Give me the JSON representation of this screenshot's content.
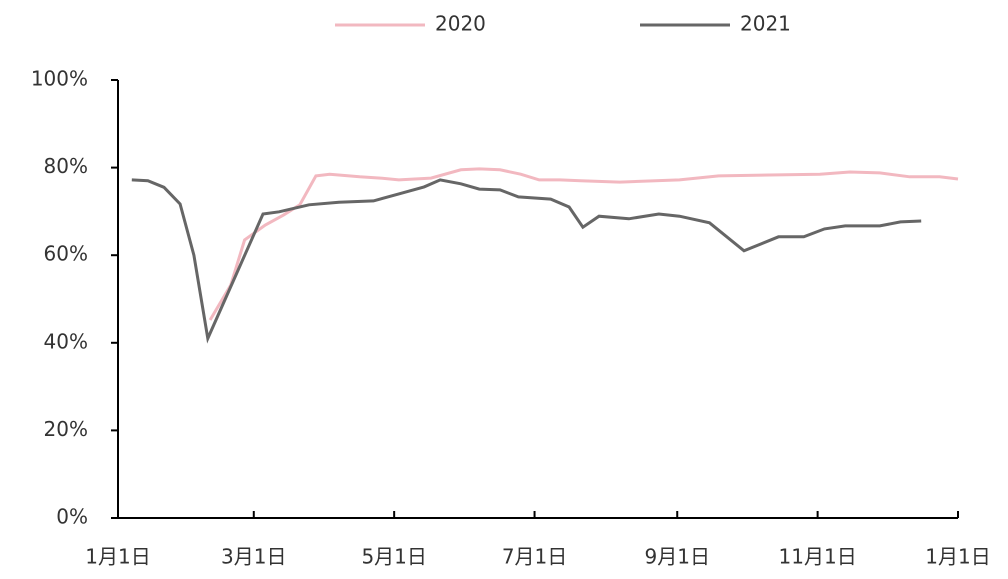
{
  "chart_data": {
    "type": "line",
    "xlim": [
      0,
      365
    ],
    "xticks": [
      {
        "value": 0,
        "label": "1月1日"
      },
      {
        "value": 59,
        "label": "3月1日"
      },
      {
        "value": 120,
        "label": "5月1日"
      },
      {
        "value": 181,
        "label": "7月1日"
      },
      {
        "value": 243,
        "label": "9月1日"
      },
      {
        "value": 304,
        "label": "11月1日"
      },
      {
        "value": 365,
        "label": "1月1日"
      }
    ],
    "ylim": [
      0,
      100
    ],
    "yticks": [
      {
        "value": 0,
        "label": "0%"
      },
      {
        "value": 20,
        "label": "20%"
      },
      {
        "value": 40,
        "label": "40%"
      },
      {
        "value": 60,
        "label": "60%"
      },
      {
        "value": 80,
        "label": "80%"
      },
      {
        "value": 100,
        "label": "100%"
      }
    ],
    "series": [
      {
        "name": "2020",
        "color": "#f2b8c0",
        "x": [
          40,
          49,
          55,
          64,
          72,
          79,
          86,
          92,
          105,
          114,
          122,
          136,
          149,
          157,
          166,
          175,
          183,
          192,
          201,
          218,
          244,
          261,
          283,
          305,
          318,
          331,
          344,
          357,
          365
        ],
        "values": [
          45.2,
          53.2,
          63.5,
          66.9,
          69.2,
          71.5,
          78.1,
          78.5,
          77.9,
          77.6,
          77.2,
          77.6,
          79.5,
          79.7,
          79.5,
          78.5,
          77.2,
          77.2,
          77.0,
          76.7,
          77.2,
          78.1,
          78.3,
          78.5,
          79.0,
          78.8,
          77.9,
          77.9,
          77.4
        ]
      },
      {
        "name": "2021",
        "color": "#666666",
        "x": [
          6,
          13,
          20,
          27,
          33,
          39,
          63,
          70,
          83,
          96,
          111,
          122,
          133,
          140,
          149,
          157,
          166,
          174,
          188,
          196,
          202,
          209,
          222,
          235,
          244,
          257,
          272,
          287,
          298,
          307,
          316,
          331,
          340,
          349
        ],
        "values": [
          77.2,
          77.0,
          75.5,
          71.7,
          60,
          41,
          69.4,
          69.9,
          71.5,
          72.1,
          72.4,
          74,
          75.6,
          77.2,
          76.3,
          75.1,
          74.9,
          73.3,
          72.8,
          71,
          66.4,
          68.9,
          68.3,
          69.4,
          68.9,
          67.4,
          61,
          64.2,
          64.2,
          66,
          66.7,
          66.7,
          67.6,
          67.8
        ]
      }
    ]
  }
}
